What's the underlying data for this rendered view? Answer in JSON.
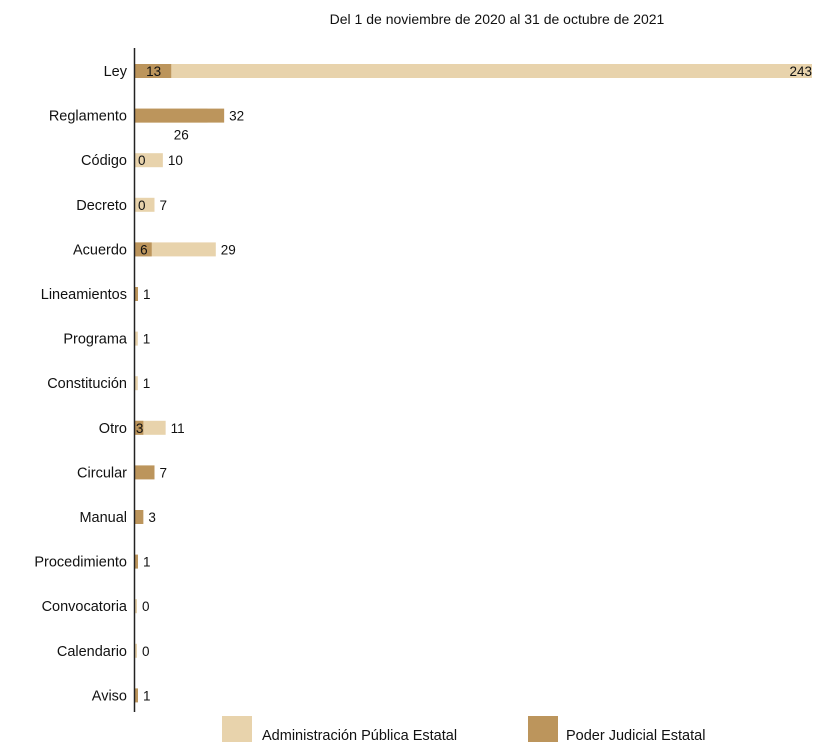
{
  "chart_data": {
    "type": "bar",
    "orientation": "horizontal",
    "subtitle": "Del 1 de noviembre de 2020 al 31 de octubre de 2021",
    "categories": [
      "Ley",
      "Reglamento",
      "Código",
      "Decreto",
      "Acuerdo",
      "Lineamientos",
      "Programa",
      "Constitución",
      "Otro",
      "Circular",
      "Manual",
      "Procedimiento",
      "Convocatoria",
      "Calendario",
      "Aviso"
    ],
    "series": [
      {
        "name": "Administración Pública Estatal",
        "color": "#e8d3ac",
        "values": [
          243,
          26,
          10,
          7,
          29,
          0,
          1,
          1,
          11,
          0,
          0,
          0,
          0,
          0,
          0
        ],
        "labels": [
          "243",
          "26",
          "10",
          "7",
          "29",
          "",
          "1",
          "1",
          "11",
          "",
          "",
          "",
          "0",
          "0",
          ""
        ]
      },
      {
        "name": "Poder Judicial Estatal",
        "color": "#bc955c",
        "values": [
          13,
          32,
          0,
          0,
          6,
          1,
          0,
          0,
          3,
          7,
          3,
          1,
          0,
          0,
          1
        ],
        "labels": [
          "13",
          "32",
          "0",
          "0",
          "6",
          "1",
          "",
          "",
          "3",
          "7",
          "3",
          "1",
          "",
          "",
          "1"
        ]
      }
    ],
    "xlim": [
      0,
      243
    ],
    "grid": false,
    "legend": "bottom"
  }
}
